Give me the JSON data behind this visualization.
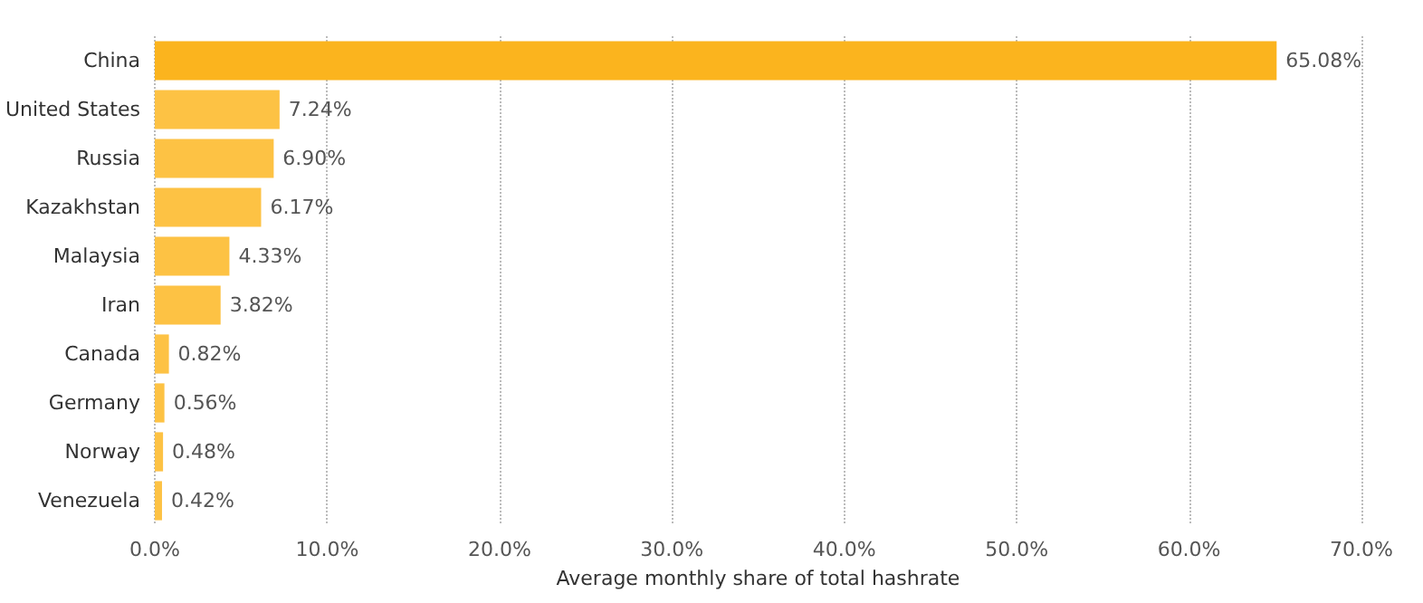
{
  "chart_data": {
    "type": "bar",
    "orientation": "horizontal",
    "xlabel": "Average monthly share of total hashrate",
    "categories": [
      "China",
      "United States",
      "Russia",
      "Kazakhstan",
      "Malaysia",
      "Iran",
      "Canada",
      "Germany",
      "Norway",
      "Venezuela"
    ],
    "values": [
      65.08,
      7.24,
      6.9,
      6.17,
      4.33,
      3.82,
      0.82,
      0.56,
      0.48,
      0.42
    ],
    "colors": [
      "#fbb41e",
      "#fdc244",
      "#fdc244",
      "#fdc244",
      "#fdc244",
      "#fdc244",
      "#fdc244",
      "#fdc244",
      "#fdc244",
      "#fdc244"
    ],
    "value_labels": [
      "65.08%",
      "7.24%",
      "6.90%",
      "6.17%",
      "4.33%",
      "3.82%",
      "0.82%",
      "0.56%",
      "0.48%",
      "0.42%"
    ],
    "xlim": [
      0,
      70
    ],
    "xticks": [
      {
        "value": 0,
        "label": "0.0%"
      },
      {
        "value": 10,
        "label": "10.0%"
      },
      {
        "value": 20,
        "label": "20.0%"
      },
      {
        "value": 30,
        "label": "30.0%"
      },
      {
        "value": 40,
        "label": "40.0%"
      },
      {
        "value": 50,
        "label": "50.0%"
      },
      {
        "value": 60,
        "label": "60.0%"
      },
      {
        "value": 70,
        "label": "70.0%"
      }
    ],
    "grid": "x"
  }
}
